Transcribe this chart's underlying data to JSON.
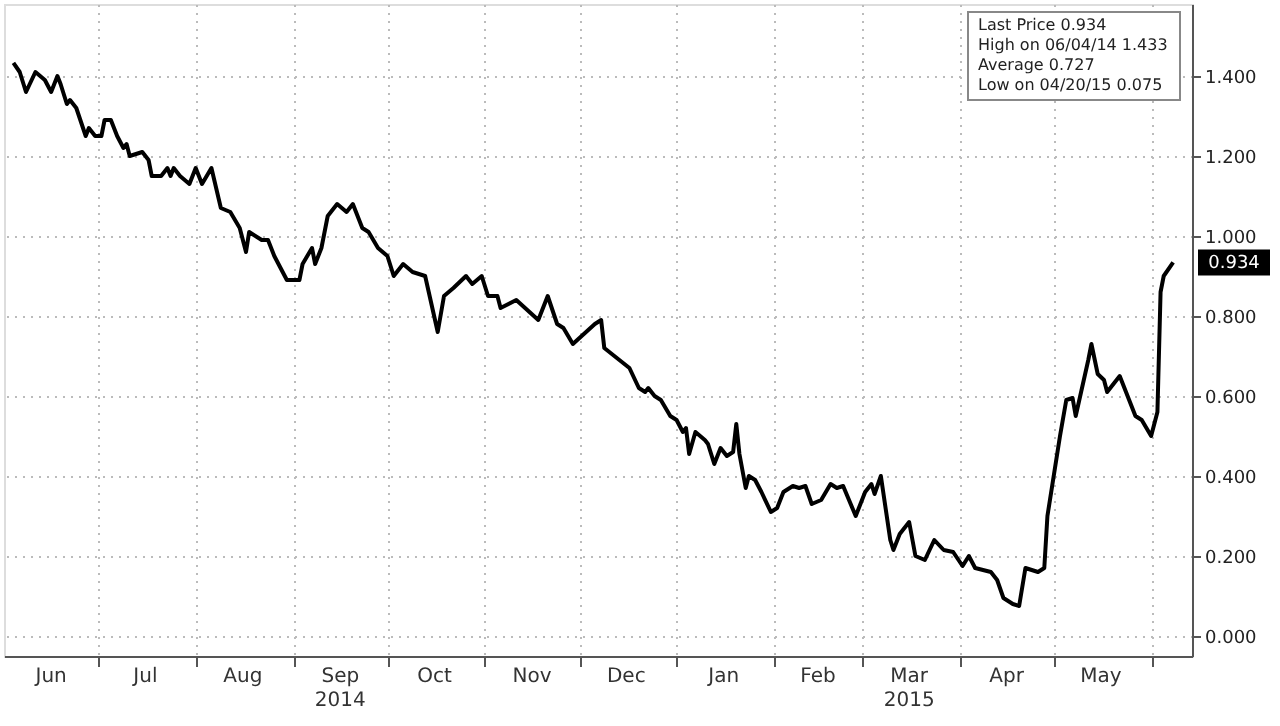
{
  "chart_data": {
    "type": "line",
    "x": [
      "2014-06-04",
      "2014-06-06",
      "2014-06-08",
      "2014-06-11",
      "2014-06-14",
      "2014-06-16",
      "2014-06-18",
      "2014-06-19",
      "2014-06-21",
      "2014-06-22",
      "2014-06-24",
      "2014-06-27",
      "2014-06-28",
      "2014-06-30",
      "2014-07-02",
      "2014-07-03",
      "2014-07-05",
      "2014-07-07",
      "2014-07-09",
      "2014-07-10",
      "2014-07-11",
      "2014-07-15",
      "2014-07-17",
      "2014-07-18",
      "2014-07-21",
      "2014-07-23",
      "2014-07-24",
      "2014-07-25",
      "2014-07-27",
      "2014-07-30",
      "2014-08-01",
      "2014-08-03",
      "2014-08-06",
      "2014-08-09",
      "2014-08-12",
      "2014-08-15",
      "2014-08-17",
      "2014-08-18",
      "2014-08-22",
      "2014-08-24",
      "2014-08-26",
      "2014-08-30",
      "2014-09-03",
      "2014-09-04",
      "2014-09-07",
      "2014-09-08",
      "2014-09-10",
      "2014-09-12",
      "2014-09-15",
      "2014-09-18",
      "2014-09-20",
      "2014-09-23",
      "2014-09-25",
      "2014-09-28",
      "2014-10-01",
      "2014-10-03",
      "2014-10-06",
      "2014-10-09",
      "2014-10-13",
      "2014-10-17",
      "2014-10-19",
      "2014-10-22",
      "2014-10-26",
      "2014-10-28",
      "2014-10-31",
      "2014-11-02",
      "2014-11-05",
      "2014-11-06",
      "2014-11-11",
      "2014-11-18",
      "2014-11-21",
      "2014-11-24",
      "2014-11-26",
      "2014-11-29",
      "2014-12-06",
      "2014-12-08",
      "2014-12-09",
      "2014-12-17",
      "2014-12-20",
      "2014-12-22",
      "2014-12-23",
      "2014-12-25",
      "2014-12-27",
      "2014-12-30",
      "2015-01-01",
      "2015-01-03",
      "2015-01-04",
      "2015-01-05",
      "2015-01-07",
      "2015-01-10",
      "2015-01-11",
      "2015-01-13",
      "2015-01-15",
      "2015-01-17",
      "2015-01-19",
      "2015-01-20",
      "2015-01-21",
      "2015-01-23",
      "2015-01-24",
      "2015-01-26",
      "2015-01-28",
      "2015-01-31",
      "2015-02-02",
      "2015-02-04",
      "2015-02-07",
      "2015-02-09",
      "2015-02-11",
      "2015-02-13",
      "2015-02-16",
      "2015-02-19",
      "2015-02-21",
      "2015-02-23",
      "2015-02-27",
      "2015-03-02",
      "2015-03-04",
      "2015-03-05",
      "2015-03-07",
      "2015-03-10",
      "2015-03-11",
      "2015-03-13",
      "2015-03-16",
      "2015-03-18",
      "2015-03-21",
      "2015-03-24",
      "2015-03-27",
      "2015-03-30",
      "2015-04-02",
      "2015-04-04",
      "2015-04-06",
      "2015-04-11",
      "2015-04-13",
      "2015-04-15",
      "2015-04-18",
      "2015-04-20",
      "2015-04-22",
      "2015-04-24",
      "2015-04-26",
      "2015-04-28",
      "2015-04-29",
      "2015-05-03",
      "2015-05-05",
      "2015-05-07",
      "2015-05-08",
      "2015-05-12",
      "2015-05-13",
      "2015-05-15",
      "2015-05-17",
      "2015-05-18",
      "2015-05-22",
      "2015-05-24",
      "2015-05-27",
      "2015-05-29",
      "2015-06-01",
      "2015-06-03",
      "2015-06-04",
      "2015-06-05",
      "2015-06-08"
    ],
    "series": [
      {
        "color": "#000000",
        "values": [
          1.433,
          1.41,
          1.36,
          1.41,
          1.39,
          1.36,
          1.4,
          1.38,
          1.33,
          1.34,
          1.32,
          1.25,
          1.27,
          1.25,
          1.25,
          1.29,
          1.29,
          1.25,
          1.22,
          1.23,
          1.2,
          1.21,
          1.19,
          1.15,
          1.15,
          1.17,
          1.15,
          1.17,
          1.15,
          1.13,
          1.17,
          1.13,
          1.17,
          1.07,
          1.06,
          1.02,
          0.96,
          1.01,
          0.99,
          0.99,
          0.95,
          0.89,
          0.89,
          0.93,
          0.97,
          0.93,
          0.97,
          1.05,
          1.08,
          1.06,
          1.08,
          1.02,
          1.01,
          0.97,
          0.95,
          0.9,
          0.93,
          0.91,
          0.9,
          0.76,
          0.85,
          0.87,
          0.9,
          0.88,
          0.9,
          0.85,
          0.85,
          0.82,
          0.84,
          0.79,
          0.85,
          0.78,
          0.77,
          0.73,
          0.78,
          0.79,
          0.72,
          0.67,
          0.62,
          0.61,
          0.62,
          0.6,
          0.59,
          0.55,
          0.54,
          0.51,
          0.52,
          0.455,
          0.51,
          0.49,
          0.48,
          0.43,
          0.47,
          0.45,
          0.46,
          0.53,
          0.455,
          0.37,
          0.4,
          0.39,
          0.36,
          0.31,
          0.32,
          0.36,
          0.375,
          0.37,
          0.375,
          0.33,
          0.34,
          0.38,
          0.37,
          0.375,
          0.3,
          0.36,
          0.38,
          0.355,
          0.4,
          0.24,
          0.215,
          0.255,
          0.285,
          0.2,
          0.19,
          0.24,
          0.215,
          0.21,
          0.175,
          0.2,
          0.17,
          0.16,
          0.14,
          0.095,
          0.08,
          0.075,
          0.17,
          0.165,
          0.16,
          0.17,
          0.3,
          0.5,
          0.59,
          0.595,
          0.55,
          0.69,
          0.73,
          0.655,
          0.64,
          0.61,
          0.65,
          0.61,
          0.55,
          0.54,
          0.5,
          0.56,
          0.86,
          0.9,
          0.934
        ]
      }
    ],
    "xlim": [
      "2014-06-01",
      "2015-06-14"
    ],
    "xticks": [
      {
        "value": "2014-06-16",
        "label": "Jun"
      },
      {
        "value": "2014-07-01",
        "label": null
      },
      {
        "value": "2014-07-16",
        "label": "Jul"
      },
      {
        "value": "2014-08-01",
        "label": null
      },
      {
        "value": "2014-08-16",
        "label": "Aug"
      },
      {
        "value": "2014-09-01",
        "label": null
      },
      {
        "value": "2014-09-16",
        "label": "Sep\n2014"
      },
      {
        "value": "2014-10-01",
        "label": null
      },
      {
        "value": "2014-10-16",
        "label": "Oct"
      },
      {
        "value": "2014-11-01",
        "label": null
      },
      {
        "value": "2014-11-16",
        "label": "Nov"
      },
      {
        "value": "2014-12-01",
        "label": null
      },
      {
        "value": "2014-12-16",
        "label": "Dec"
      },
      {
        "value": "2015-01-01",
        "label": null
      },
      {
        "value": "2015-01-16",
        "label": "Jan"
      },
      {
        "value": "2015-02-01",
        "label": null
      },
      {
        "value": "2015-02-15",
        "label": "Feb"
      },
      {
        "value": "2015-03-01",
        "label": null
      },
      {
        "value": "2015-03-16",
        "label": "Mar\n2015"
      },
      {
        "value": "2015-04-01",
        "label": null
      },
      {
        "value": "2015-04-16",
        "label": "Apr"
      },
      {
        "value": "2015-05-01",
        "label": null
      },
      {
        "value": "2015-05-16",
        "label": "May"
      },
      {
        "value": "2015-06-01",
        "label": null
      }
    ],
    "ylim": [
      -0.05,
      1.58
    ],
    "yticks": [
      {
        "value": 0,
        "label": "0.000"
      },
      {
        "value": 0.2,
        "label": "0.200"
      },
      {
        "value": 0.4,
        "label": "0.400"
      },
      {
        "value": 0.6,
        "label": "0.600"
      },
      {
        "value": 0.8,
        "label": "0.800"
      },
      {
        "value": 1.0,
        "label": "1.000"
      },
      {
        "value": 1.2,
        "label": "1.200"
      },
      {
        "value": 1.4,
        "label": "1.400"
      }
    ],
    "grid": true,
    "marker": "none",
    "line_style": "solid",
    "annotations": [
      "Last Price 0.934",
      "High on 06/04/14 1.433",
      "Average 0.727",
      "Low on 04/20/15 0.075",
      {
        "text": "0.934",
        "x": "2015-06-08",
        "y": 0.934
      }
    ]
  }
}
